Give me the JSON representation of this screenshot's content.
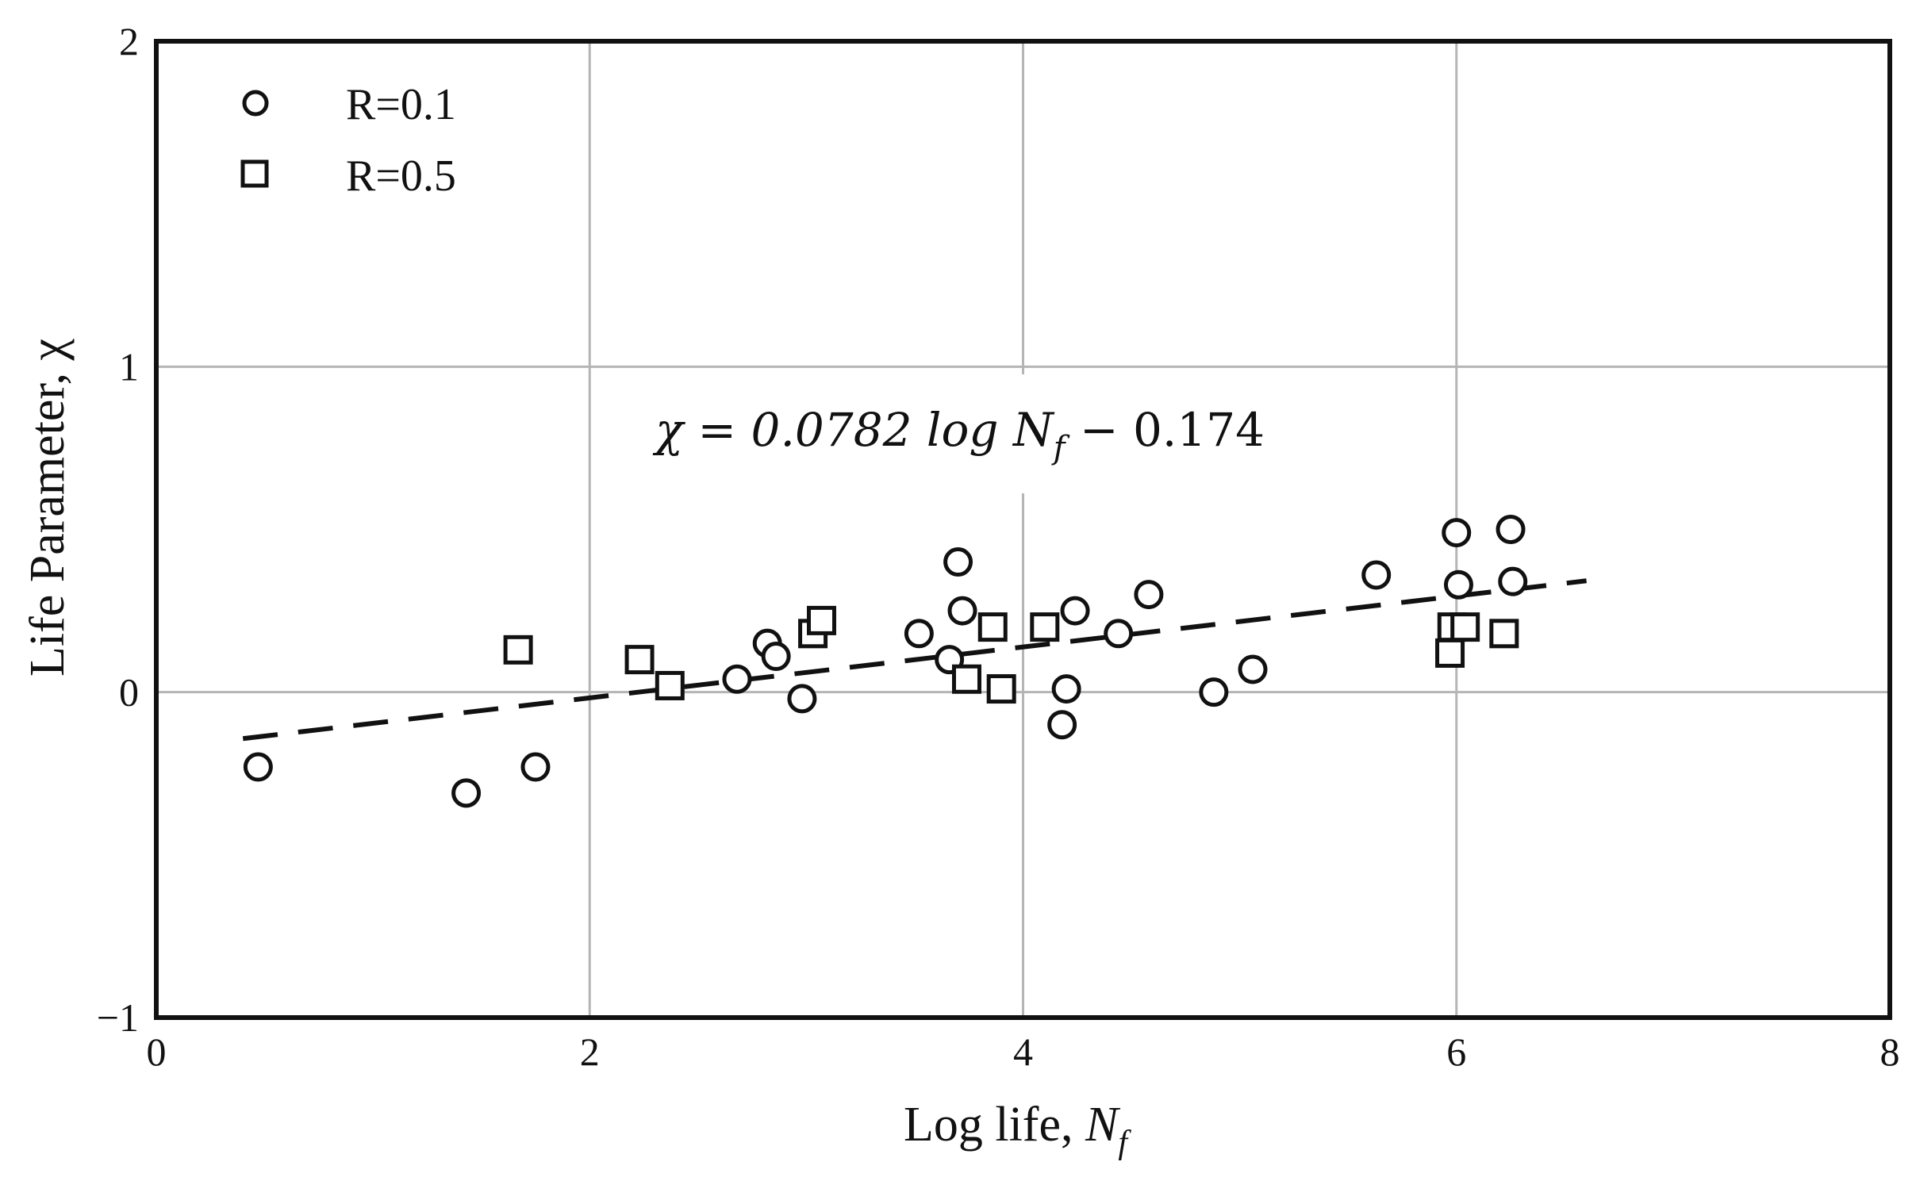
{
  "chart_data": {
    "type": "scatter",
    "xlabel": "Log life, ",
    "xlabel_symbol": "N",
    "xlabel_sub": "f",
    "ylabel": "Life Parameter, χ",
    "xlim": [
      0,
      8
    ],
    "ylim": [
      -1,
      2
    ],
    "xticks": [
      "0",
      "2",
      "4",
      "6",
      "8"
    ],
    "yticks": [
      "−1",
      "0",
      "1",
      "2"
    ],
    "grid": true,
    "legend_position": "top-left",
    "annotation": {
      "lhs": "χ = 0.0782 log ",
      "symbol": "N",
      "sub": "f",
      "rhs": " − 0.174"
    },
    "fit_line": {
      "slope": 0.0782,
      "intercept": -0.174,
      "x_range": [
        0.4,
        6.6
      ],
      "style": "dashed"
    },
    "series": [
      {
        "name": "R=0.1",
        "marker": "circle",
        "points": [
          [
            0.47,
            -0.23
          ],
          [
            1.43,
            -0.31
          ],
          [
            1.75,
            -0.23
          ],
          [
            2.68,
            0.04
          ],
          [
            2.82,
            0.15
          ],
          [
            2.86,
            0.11
          ],
          [
            2.98,
            -0.02
          ],
          [
            3.52,
            0.18
          ],
          [
            3.66,
            0.1
          ],
          [
            3.7,
            0.4
          ],
          [
            3.72,
            0.25
          ],
          [
            4.18,
            -0.1
          ],
          [
            4.2,
            0.01
          ],
          [
            4.24,
            0.25
          ],
          [
            4.44,
            0.18
          ],
          [
            4.58,
            0.3
          ],
          [
            4.88,
            0.0
          ],
          [
            5.06,
            0.07
          ],
          [
            5.63,
            0.36
          ],
          [
            6.0,
            0.49
          ],
          [
            6.01,
            0.33
          ],
          [
            6.25,
            0.5
          ],
          [
            6.26,
            0.34
          ]
        ]
      },
      {
        "name": "R=0.5",
        "marker": "square",
        "points": [
          [
            1.67,
            0.13
          ],
          [
            2.23,
            0.1
          ],
          [
            2.37,
            0.02
          ],
          [
            3.03,
            0.18
          ],
          [
            3.07,
            0.22
          ],
          [
            3.74,
            0.04
          ],
          [
            3.86,
            0.2
          ],
          [
            3.9,
            0.01
          ],
          [
            4.1,
            0.2
          ],
          [
            5.97,
            0.12
          ],
          [
            5.98,
            0.2
          ],
          [
            6.04,
            0.2
          ],
          [
            6.22,
            0.18
          ]
        ]
      }
    ]
  }
}
